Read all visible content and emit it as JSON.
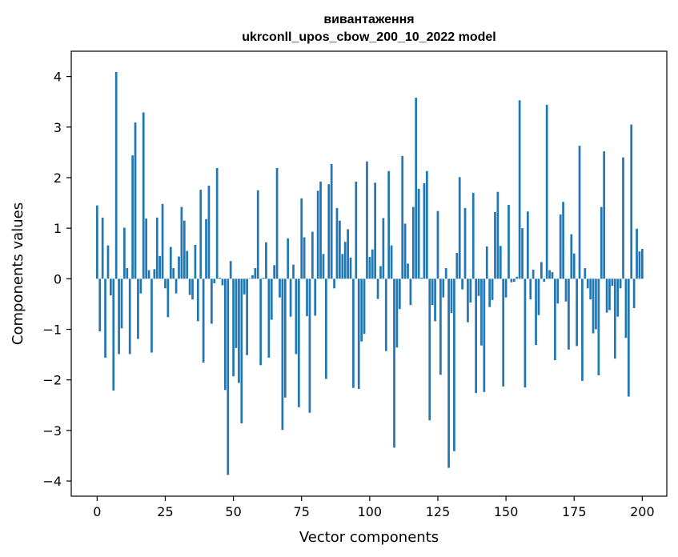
{
  "chart_data": {
    "type": "bar",
    "title": "вивантаження",
    "subtitle": "ukrconll_upos_cbow_200_10_2022 model",
    "xlabel": "Vector components",
    "ylabel": "Components values",
    "xlim": [
      -9.5,
      209
    ],
    "ylim": [
      -4.3,
      4.5
    ],
    "xticks": [
      0,
      25,
      50,
      75,
      100,
      125,
      150,
      175,
      200
    ],
    "xtick_labels": [
      "0",
      "25",
      "50",
      "75",
      "100",
      "125",
      "150",
      "175",
      "200"
    ],
    "yticks": [
      -4,
      -3,
      -2,
      -1,
      0,
      1,
      2,
      3,
      4
    ],
    "ytick_labels": [
      "−4",
      "−3",
      "−2",
      "−1",
      "0",
      "1",
      "2",
      "3",
      "4"
    ],
    "bar_color": "#1f77b4",
    "grid": false,
    "values": [
      1.45,
      -1.04,
      1.21,
      -1.56,
      0.66,
      -0.33,
      -2.21,
      4.09,
      -1.49,
      -0.98,
      1.01,
      0.21,
      -1.49,
      2.44,
      3.09,
      -1.19,
      -0.29,
      3.29,
      1.19,
      0.17,
      -1.46,
      0.19,
      1.21,
      0.45,
      1.48,
      -0.19,
      -0.76,
      0.63,
      0.21,
      -0.29,
      0.44,
      1.42,
      1.15,
      0.55,
      -0.32,
      -0.41,
      0.67,
      -0.84,
      1.76,
      -1.66,
      1.18,
      1.84,
      -0.89,
      -0.09,
      2.19,
      0.02,
      -0.13,
      -2.2,
      -3.88,
      0.35,
      -1.93,
      -1.37,
      -2.06,
      -2.86,
      -0.31,
      -1.51,
      0.01,
      0.07,
      0.21,
      1.75,
      -1.71,
      0.02,
      0.72,
      -1.56,
      -0.81,
      0.27,
      2.19,
      -0.37,
      -2.99,
      -2.35,
      0.8,
      -0.75,
      0.28,
      -1.49,
      -2.54,
      1.59,
      0.82,
      -0.74,
      -2.65,
      0.93,
      -0.73,
      1.74,
      1.92,
      0.49,
      -1.98,
      1.87,
      2.27,
      -0.19,
      1.4,
      1.15,
      0.49,
      0.73,
      0.98,
      0.42,
      -2.16,
      1.92,
      -2.18,
      -1.24,
      -1.09,
      2.32,
      0.43,
      0.58,
      1.9,
      -0.4,
      0.25,
      1.2,
      -1.43,
      2.13,
      0.66,
      -3.34,
      -1.36,
      -0.6,
      2.43,
      1.09,
      0.3,
      -0.52,
      1.42,
      3.58,
      1.78,
      0.02,
      1.89,
      2.13,
      -2.8,
      -0.52,
      -0.84,
      1.34,
      -1.9,
      -0.37,
      0.21,
      -3.74,
      -0.68,
      -3.41,
      0.51,
      2.01,
      -0.21,
      1.4,
      -0.86,
      -0.47,
      1.7,
      -2.26,
      -0.34,
      -1.32,
      -2.24,
      0.64,
      -0.56,
      -0.42,
      1.32,
      1.72,
      0.65,
      -2.13,
      -0.37,
      1.46,
      -0.07,
      -0.06,
      0.04,
      3.53,
      1.0,
      -2.15,
      1.33,
      -0.41,
      0.18,
      -1.31,
      -0.72,
      0.33,
      -0.06,
      3.44,
      0.17,
      0.13,
      -1.61,
      -0.49,
      1.27,
      1.52,
      -0.45,
      -1.4,
      0.88,
      0.5,
      -1.33,
      2.63,
      -2.02,
      0.21,
      -0.19,
      -0.41,
      -1.08,
      -1.0,
      -1.91,
      1.42,
      2.52,
      -0.67,
      -0.62,
      -0.14,
      -1.58,
      -0.75,
      -0.19,
      2.4,
      -1.17,
      -2.33,
      3.05,
      -0.58,
      0.99,
      0.54,
      0.59
    ]
  }
}
